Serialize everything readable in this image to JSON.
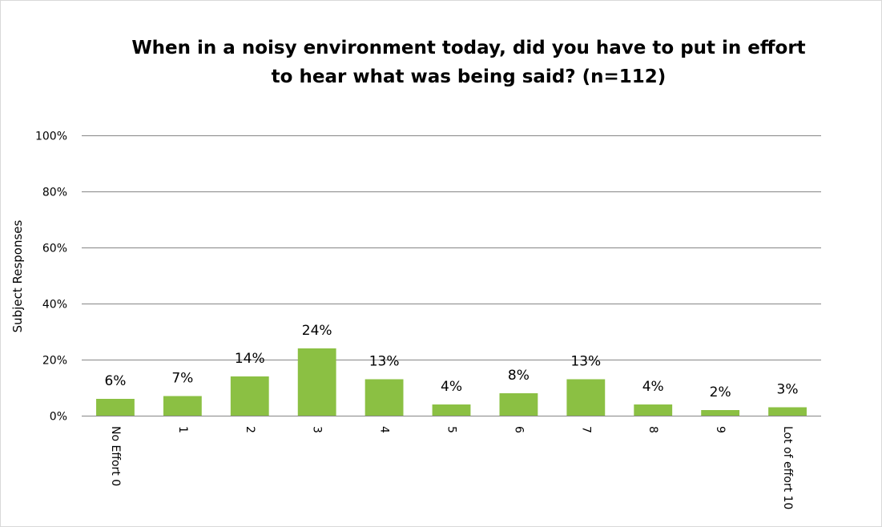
{
  "chart_data": {
    "type": "bar",
    "title_lines": [
      "When in a noisy environment today, did you have to put in effort",
      "to hear what was being said? (n=112)"
    ],
    "xlabel": "",
    "ylabel": "Subject Responses",
    "categories": [
      "No Effort 0",
      "1",
      "2",
      "3",
      "4",
      "5",
      "6",
      "7",
      "8",
      "9",
      "Lot of effort 10"
    ],
    "values": [
      6,
      7,
      14,
      24,
      13,
      4,
      8,
      13,
      4,
      2,
      3
    ],
    "value_labels": [
      "6%",
      "7%",
      "14%",
      "24%",
      "13%",
      "4%",
      "8%",
      "13%",
      "4%",
      "2%",
      "3%"
    ],
    "ylim": [
      0,
      100
    ],
    "yticks": [
      0,
      20,
      40,
      60,
      80,
      100
    ],
    "ytick_labels": [
      "0%",
      "20%",
      "40%",
      "60%",
      "80%",
      "100%"
    ],
    "grid": true,
    "legend": "none",
    "bar_color": "#8bc043",
    "gridline_color": "#868686"
  }
}
